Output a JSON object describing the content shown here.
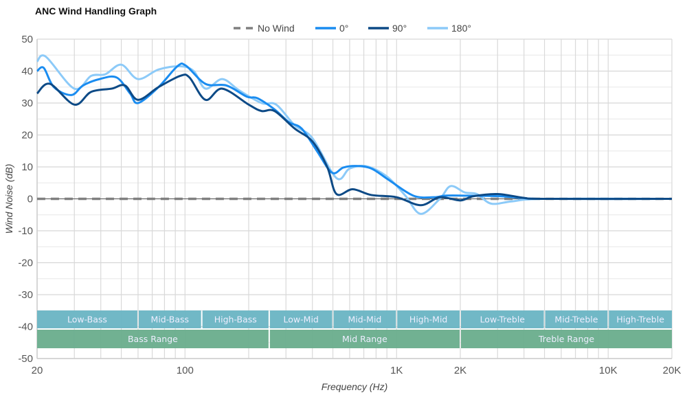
{
  "chart_data": {
    "type": "line",
    "title": "ANC Wind Handling Graph",
    "xlabel": "Frequency (Hz)",
    "ylabel": "Wind Noise (dB)",
    "xscale": "log",
    "xlim": [
      20,
      20000
    ],
    "ylim": [
      -50,
      50
    ],
    "grid": true,
    "legend": "top-center",
    "xticks": [
      {
        "v": 20,
        "label": "20"
      },
      {
        "v": 100,
        "label": "100"
      },
      {
        "v": 1000,
        "label": "1K"
      },
      {
        "v": 2000,
        "label": "2K"
      },
      {
        "v": 10000,
        "label": "10K"
      },
      {
        "v": 20000,
        "label": "20K"
      }
    ],
    "yticks": [
      50,
      40,
      30,
      20,
      10,
      0,
      -10,
      -20,
      -30,
      -40,
      -50
    ],
    "series": [
      {
        "name": "No Wind",
        "color": "#7f7f7f",
        "dashed": true,
        "x": [
          20,
          20000
        ],
        "y": [
          0,
          0
        ]
      },
      {
        "name": "0°",
        "color": "#1a8cf0",
        "x": [
          20,
          21.5,
          24,
          29,
          33,
          39.5,
          47.5,
          55,
          60,
          75,
          92,
          101,
          125,
          157,
          196,
          220,
          265,
          310,
          356,
          420,
          495,
          560,
          640,
          760,
          915,
          1200,
          1500,
          1700,
          2100,
          3100,
          3900,
          5000,
          20000
        ],
        "y": [
          40,
          41,
          35,
          32.5,
          35.5,
          37.5,
          38,
          33,
          30,
          35,
          41.5,
          41.7,
          36,
          35.5,
          32,
          31.5,
          28,
          24,
          22,
          15,
          8.2,
          9.8,
          10.3,
          9.5,
          6,
          1,
          0.5,
          1,
          1,
          0.8,
          0.3,
          0,
          0
        ]
      },
      {
        "name": "90°",
        "color": "#0d4a86",
        "x": [
          20,
          23,
          30,
          36,
          45,
          52,
          60,
          75,
          95,
          105,
          125,
          150,
          200,
          230,
          265,
          330,
          400,
          470,
          520,
          620,
          760,
          1000,
          1300,
          1600,
          2000,
          2300,
          3000,
          4000,
          5000,
          20000
        ],
        "y": [
          33,
          36,
          29.5,
          33.5,
          34.5,
          35.5,
          31,
          35,
          38.5,
          38,
          31,
          34.5,
          29.5,
          27.5,
          27.5,
          22,
          18,
          10,
          1.5,
          3,
          1.2,
          0.5,
          -2,
          0.5,
          -0.5,
          0.8,
          1.5,
          0.3,
          0,
          0
        ]
      },
      {
        "name": "180°",
        "color": "#8ccaf8",
        "x": [
          20,
          22,
          30,
          36,
          42,
          50,
          60,
          75,
          95,
          110,
          125,
          150,
          180,
          230,
          270,
          330,
          400,
          520,
          600,
          720,
          900,
          1100,
          1300,
          1600,
          1800,
          2100,
          2400,
          2800,
          3500,
          5000,
          20000
        ],
        "y": [
          43,
          44.5,
          34.5,
          38.5,
          39,
          42,
          37.5,
          40.5,
          41.5,
          40,
          34.5,
          37.5,
          34,
          30,
          29.5,
          23,
          19,
          6.5,
          9.5,
          10.2,
          7,
          1,
          -4.7,
          0,
          4,
          2,
          1.5,
          -1.5,
          -0.8,
          0,
          0
        ]
      }
    ],
    "bands_top": [
      {
        "label": "Low-Bass",
        "from": 20,
        "to": 60
      },
      {
        "label": "Mid-Bass",
        "from": 60,
        "to": 120
      },
      {
        "label": "High-Bass",
        "from": 120,
        "to": 250
      },
      {
        "label": "Low-Mid",
        "from": 250,
        "to": 500
      },
      {
        "label": "Mid-Mid",
        "from": 500,
        "to": 1000
      },
      {
        "label": "High-Mid",
        "from": 1000,
        "to": 2000
      },
      {
        "label": "Low-Treble",
        "from": 2000,
        "to": 5000
      },
      {
        "label": "Mid-Treble",
        "from": 5000,
        "to": 10000
      },
      {
        "label": "High-Treble",
        "from": 10000,
        "to": 20000
      }
    ],
    "bands_bottom": [
      {
        "label": "Bass Range",
        "from": 20,
        "to": 250
      },
      {
        "label": "Mid Range",
        "from": 250,
        "to": 2000
      },
      {
        "label": "Treble Range",
        "from": 2000,
        "to": 20000
      }
    ],
    "band_colors": {
      "top": "#6cb6c4",
      "bottom": "#6cae8e"
    }
  }
}
